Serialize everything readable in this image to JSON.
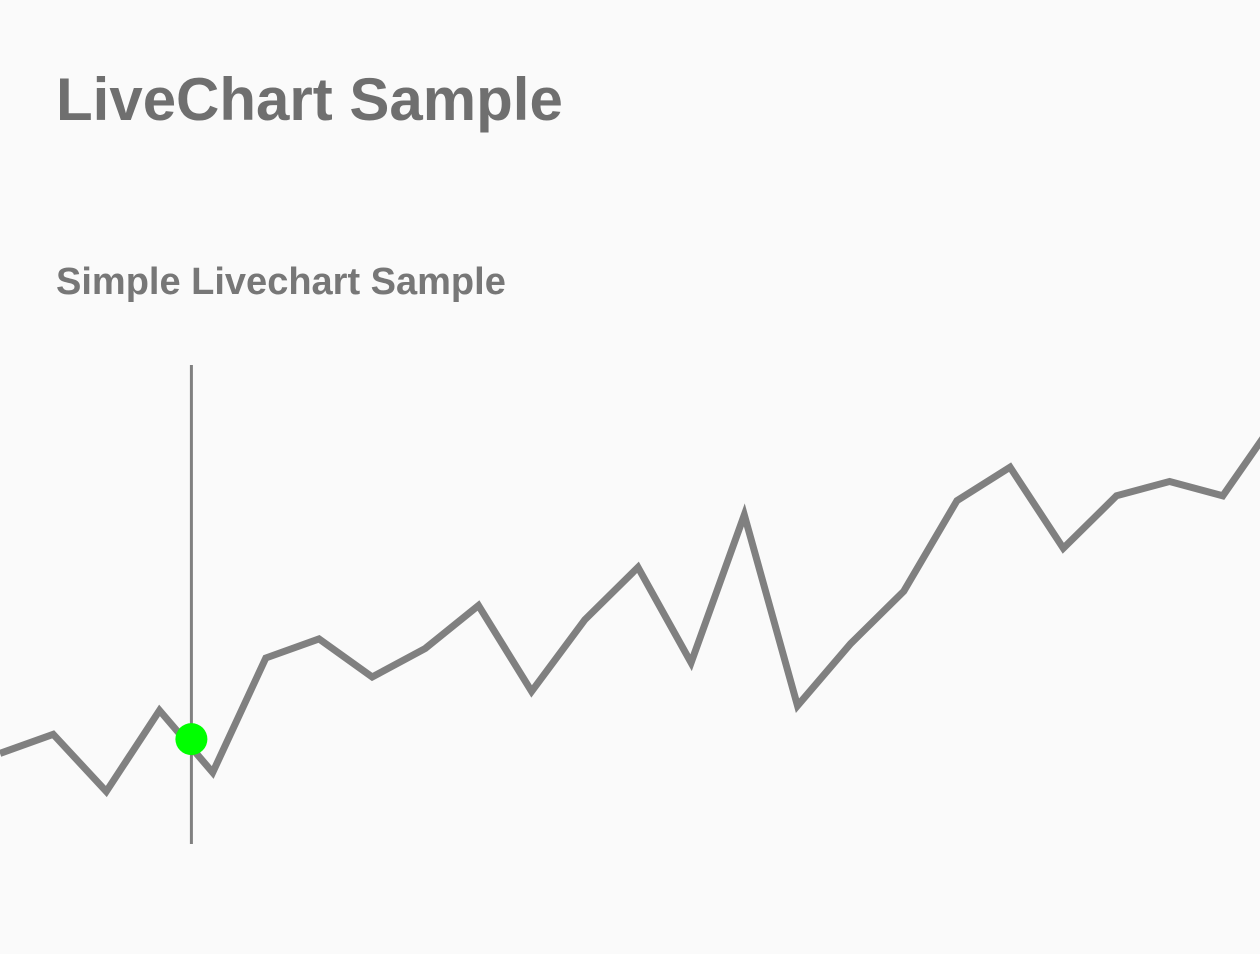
{
  "page": {
    "title": "LiveChart Sample"
  },
  "chart": {
    "subtitle": "Simple Livechart Sample"
  },
  "colors": {
    "line": "#808080",
    "cursor_line": "#808080",
    "cursor_point": "#00ff00",
    "title_text": "#6f6f6f",
    "background": "#fafafa"
  },
  "chart_data": {
    "type": "line",
    "title": "Simple Livechart Sample",
    "xlabel": "",
    "ylabel": "",
    "grid": false,
    "axes_visible": false,
    "x": [
      0,
      1,
      2,
      3,
      4,
      5,
      6,
      7,
      8,
      9,
      10,
      11,
      12,
      13,
      14,
      15,
      16,
      17,
      18,
      19,
      20,
      21,
      22,
      23,
      24
    ],
    "xlim": [
      0,
      23.7
    ],
    "ylim": [
      0,
      100
    ],
    "series": [
      {
        "values": [
          19,
          23,
          11,
          28,
          15,
          39,
          43,
          35,
          41,
          50,
          32,
          47,
          58,
          38,
          69,
          29,
          42,
          53,
          72,
          79,
          62,
          73,
          76,
          73,
          89
        ]
      }
    ],
    "cursor": {
      "x": 3.6,
      "y": 22
    }
  }
}
